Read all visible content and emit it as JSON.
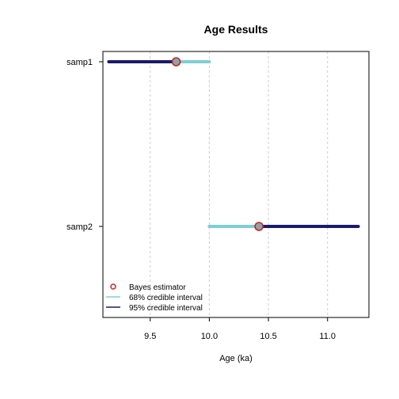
{
  "chart_data": {
    "type": "interval",
    "title": "Age Results",
    "xlabel": "Age (ka)",
    "ylabel": "",
    "xlim": [
      9.1,
      11.35
    ],
    "xticks": [
      9.5,
      10.0,
      10.5,
      11.0
    ],
    "xtick_labels": [
      "9.5",
      "10.0",
      "10.5",
      "11.0"
    ],
    "grid": "vertical dashed",
    "legend_position": "bottom-left",
    "categories": [
      "samp1",
      "samp2"
    ],
    "samples": [
      {
        "name": "samp1",
        "estimate": 9.72,
        "ci68": [
          9.76,
          10.0
        ],
        "ci95": [
          9.15,
          9.76
        ]
      },
      {
        "name": "samp2",
        "estimate": 10.42,
        "ci68": [
          10.0,
          10.42
        ],
        "ci95": [
          10.42,
          11.26
        ]
      }
    ],
    "legend": [
      {
        "label": "Bayes estimator",
        "kind": "point"
      },
      {
        "label": "68% credible interval",
        "kind": "line68"
      },
      {
        "label": "95% credible interval",
        "kind": "line95"
      }
    ],
    "colors": {
      "ci68": "#7ecfd4",
      "ci95": "#1a1a6e",
      "estimate_fill": "#8aa6a8",
      "estimate_stroke": "#cc2222",
      "grid": "#cccccc",
      "axis": "#000000"
    }
  }
}
